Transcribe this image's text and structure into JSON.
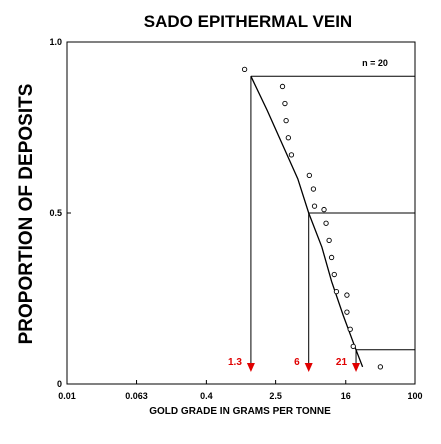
{
  "chart_data": {
    "type": "scatter",
    "title": "SADO EPITHERMAL VEIN",
    "xlabel": "GOLD GRADE IN GRAMS PER TONNE",
    "ylabel": "PROPORTION OF DEPOSITS",
    "x_scale": "log",
    "xlim": [
      0.01,
      100
    ],
    "ylim": [
      0,
      1
    ],
    "x_ticks": [
      "0.01",
      "0.063",
      "0.4",
      "2.5",
      "16",
      "100"
    ],
    "y_ticks": [
      "0",
      "0.5",
      "1.0"
    ],
    "grid": false,
    "sample_count_label": "n = 20",
    "points": [
      {
        "x": 1.1,
        "y": 0.92
      },
      {
        "x": 3.0,
        "y": 0.87
      },
      {
        "x": 3.2,
        "y": 0.82
      },
      {
        "x": 3.3,
        "y": 0.77
      },
      {
        "x": 3.5,
        "y": 0.72
      },
      {
        "x": 3.8,
        "y": 0.67
      },
      {
        "x": 6.1,
        "y": 0.61
      },
      {
        "x": 6.8,
        "y": 0.57
      },
      {
        "x": 7.0,
        "y": 0.52
      },
      {
        "x": 9.0,
        "y": 0.51
      },
      {
        "x": 9.5,
        "y": 0.47
      },
      {
        "x": 10.3,
        "y": 0.42
      },
      {
        "x": 11.0,
        "y": 0.37
      },
      {
        "x": 11.8,
        "y": 0.32
      },
      {
        "x": 12.5,
        "y": 0.27
      },
      {
        "x": 16.5,
        "y": 0.26
      },
      {
        "x": 16.5,
        "y": 0.21
      },
      {
        "x": 18.0,
        "y": 0.16
      },
      {
        "x": 19.5,
        "y": 0.11
      },
      {
        "x": 40.0,
        "y": 0.05
      }
    ],
    "fitted_curve": [
      {
        "x": 1.3,
        "y": 0.9
      },
      {
        "x": 2.0,
        "y": 0.8
      },
      {
        "x": 3.0,
        "y": 0.7
      },
      {
        "x": 4.5,
        "y": 0.6
      },
      {
        "x": 6.0,
        "y": 0.5
      },
      {
        "x": 8.5,
        "y": 0.4
      },
      {
        "x": 11.0,
        "y": 0.3
      },
      {
        "x": 15.0,
        "y": 0.2
      },
      {
        "x": 21.0,
        "y": 0.1
      },
      {
        "x": 25.0,
        "y": 0.05
      }
    ],
    "percentile_markers": [
      {
        "label": "1.3",
        "x": 1.3,
        "y": 0.9
      },
      {
        "label": "6",
        "x": 6.0,
        "y": 0.5
      },
      {
        "label": "21",
        "x": 21.0,
        "y": 0.1
      }
    ],
    "colors": {
      "axis": "#000000",
      "marker_arrow": "#e00000",
      "marker_label": "#e00000"
    }
  }
}
